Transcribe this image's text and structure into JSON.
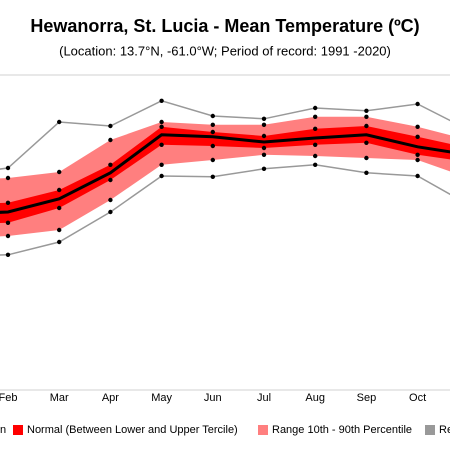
{
  "chart_data": {
    "type": "band-line",
    "title": "Hewanorra, St. Lucia - Mean Temperature (ºC)",
    "subtitle": "(Location: 13.7°N, -61.0°W; Period of record: 1991 -2020)",
    "categories": [
      null,
      "Feb",
      "Mar",
      "Apr",
      "May",
      "Jun",
      "Jul",
      "Aug",
      "Sep",
      "Oct",
      null
    ],
    "ylim": [
      22,
      29.75
    ],
    "grid": false,
    "series": [
      {
        "name": "Re",
        "color": "#999999",
        "upper": [
          27.38,
          27.55,
          28.7,
          28.6,
          29.23,
          28.85,
          28.78,
          29.05,
          28.98,
          29.15,
          28.5
        ],
        "lower": [
          25.35,
          25.38,
          25.7,
          26.45,
          27.35,
          27.33,
          27.53,
          27.63,
          27.43,
          27.35,
          26.63
        ]
      },
      {
        "name": "Range 10th - 90th Percentile",
        "color": "#ff7f7f",
        "upper": [
          27.25,
          27.3,
          27.45,
          28.25,
          28.7,
          28.63,
          28.63,
          28.83,
          28.83,
          28.58,
          28.25
        ],
        "lower": [
          25.8,
          25.85,
          26.0,
          26.75,
          27.63,
          27.75,
          27.88,
          27.85,
          27.8,
          27.75,
          27.3
        ]
      },
      {
        "name": "Normal (Between Lower and Upper Tercile)",
        "color": "#ff0000",
        "upper": [
          26.65,
          26.68,
          27.0,
          27.63,
          28.58,
          28.45,
          28.35,
          28.53,
          28.6,
          28.33,
          28.05
        ],
        "lower": [
          26.15,
          26.18,
          26.55,
          27.25,
          28.13,
          28.1,
          28.05,
          28.13,
          28.18,
          27.88,
          27.7
        ]
      },
      {
        "name": "n",
        "color": "#000000",
        "values": [
          26.4,
          26.45,
          26.78,
          27.43,
          28.38,
          28.33,
          28.2,
          28.3,
          28.38,
          28.08,
          27.88
        ]
      }
    ]
  }
}
